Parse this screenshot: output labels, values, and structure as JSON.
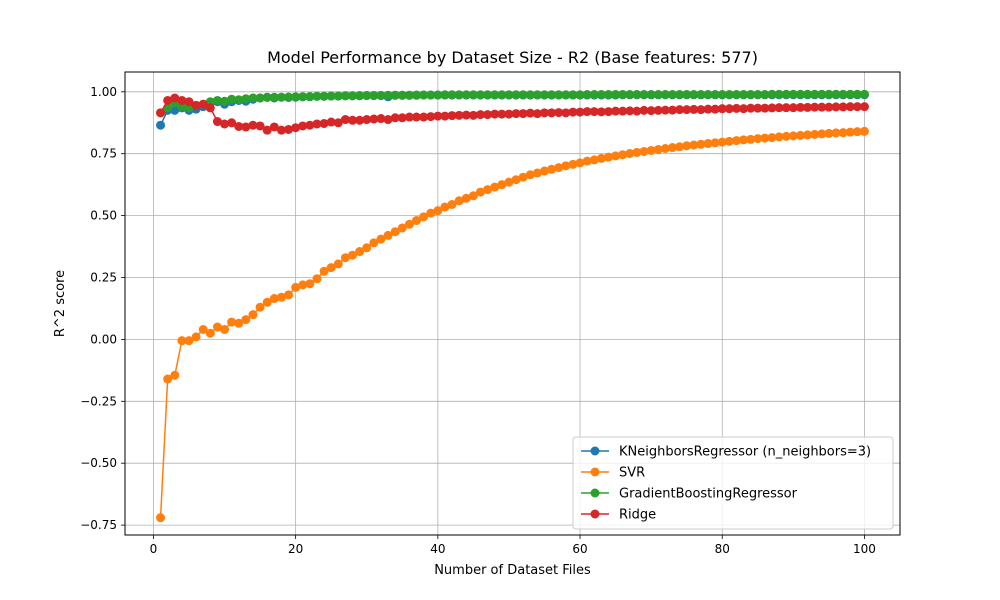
{
  "chart_data": {
    "type": "line",
    "title": "Model Performance by Dataset Size - R2 (Base features: 577)",
    "xlabel": "Number of Dataset Files",
    "ylabel": "R^2 score",
    "xlim": [
      -4,
      105
    ],
    "ylim": [
      -0.79,
      1.08
    ],
    "xticks": [
      0,
      20,
      40,
      60,
      80,
      100
    ],
    "xtick_labels": [
      "0",
      "20",
      "40",
      "60",
      "80",
      "100"
    ],
    "yticks": [
      -0.75,
      -0.5,
      -0.25,
      0.0,
      0.25,
      0.5,
      0.75,
      1.0
    ],
    "ytick_labels": [
      "−0.75",
      "−0.50",
      "−0.25",
      "0.00",
      "0.25",
      "0.50",
      "0.75",
      "1.00"
    ],
    "grid": true,
    "legend_position": "bottom-right",
    "x": [
      1,
      2,
      3,
      4,
      5,
      6,
      7,
      8,
      9,
      10,
      11,
      12,
      13,
      14,
      15,
      16,
      17,
      18,
      19,
      20,
      21,
      22,
      23,
      24,
      25,
      26,
      27,
      28,
      29,
      30,
      31,
      32,
      33,
      34,
      35,
      36,
      37,
      38,
      39,
      40,
      41,
      42,
      43,
      44,
      45,
      46,
      47,
      48,
      49,
      50,
      51,
      52,
      53,
      54,
      55,
      56,
      57,
      58,
      59,
      60,
      61,
      62,
      63,
      64,
      65,
      66,
      67,
      68,
      69,
      70,
      71,
      72,
      73,
      74,
      75,
      76,
      77,
      78,
      79,
      80,
      81,
      82,
      83,
      84,
      85,
      86,
      87,
      88,
      89,
      90,
      91,
      92,
      93,
      94,
      95,
      96,
      97,
      98,
      99,
      100
    ],
    "series": [
      {
        "name": "KNeighborsRegressor (n_neighbors=3)",
        "color": "#1f77b4",
        "values": [
          0.865,
          0.925,
          0.925,
          0.935,
          0.925,
          0.93,
          0.94,
          0.955,
          0.96,
          0.95,
          0.96,
          0.965,
          0.962,
          0.97,
          0.975,
          0.978,
          0.975,
          0.978,
          0.977,
          0.978,
          0.98,
          0.98,
          0.982,
          0.982,
          0.983,
          0.983,
          0.984,
          0.984,
          0.984,
          0.985,
          0.985,
          0.985,
          0.98,
          0.986,
          0.986,
          0.986,
          0.986,
          0.987,
          0.987,
          0.987,
          0.987,
          0.987,
          0.987,
          0.987,
          0.987,
          0.987,
          0.987,
          0.987,
          0.987,
          0.987,
          0.987,
          0.987,
          0.987,
          0.987,
          0.987,
          0.987,
          0.987,
          0.987,
          0.987,
          0.987,
          0.987,
          0.987,
          0.987,
          0.987,
          0.987,
          0.988,
          0.988,
          0.988,
          0.988,
          0.988,
          0.988,
          0.988,
          0.988,
          0.988,
          0.988,
          0.988,
          0.988,
          0.988,
          0.988,
          0.988,
          0.988,
          0.988,
          0.988,
          0.988,
          0.988,
          0.988,
          0.988,
          0.988,
          0.988,
          0.988,
          0.988,
          0.988,
          0.988,
          0.988,
          0.988,
          0.988,
          0.988,
          0.988,
          0.988,
          0.988
        ]
      },
      {
        "name": "SVR",
        "color": "#ff7f0e",
        "values": [
          -0.72,
          -0.16,
          -0.145,
          -0.005,
          -0.005,
          0.01,
          0.04,
          0.025,
          0.05,
          0.04,
          0.07,
          0.065,
          0.08,
          0.1,
          0.13,
          0.15,
          0.165,
          0.17,
          0.18,
          0.21,
          0.22,
          0.225,
          0.245,
          0.275,
          0.29,
          0.305,
          0.33,
          0.34,
          0.355,
          0.37,
          0.39,
          0.405,
          0.42,
          0.435,
          0.45,
          0.465,
          0.48,
          0.495,
          0.51,
          0.52,
          0.535,
          0.545,
          0.56,
          0.57,
          0.58,
          0.595,
          0.605,
          0.615,
          0.625,
          0.635,
          0.645,
          0.655,
          0.665,
          0.672,
          0.68,
          0.687,
          0.694,
          0.701,
          0.707,
          0.713,
          0.72,
          0.725,
          0.731,
          0.736,
          0.741,
          0.746,
          0.751,
          0.755,
          0.759,
          0.763,
          0.767,
          0.771,
          0.775,
          0.778,
          0.782,
          0.785,
          0.788,
          0.791,
          0.794,
          0.797,
          0.8,
          0.803,
          0.806,
          0.808,
          0.811,
          0.813,
          0.815,
          0.818,
          0.82,
          0.822,
          0.824,
          0.826,
          0.828,
          0.83,
          0.832,
          0.834,
          0.835,
          0.837,
          0.839,
          0.84
        ]
      },
      {
        "name": "GradientBoostingRegressor",
        "color": "#2ca02c",
        "values": [
          0.915,
          0.935,
          0.955,
          0.94,
          0.935,
          0.945,
          0.95,
          0.96,
          0.965,
          0.962,
          0.97,
          0.968,
          0.972,
          0.975,
          0.975,
          0.977,
          0.978,
          0.978,
          0.979,
          0.98,
          0.98,
          0.981,
          0.982,
          0.982,
          0.983,
          0.983,
          0.984,
          0.984,
          0.985,
          0.985,
          0.985,
          0.985,
          0.986,
          0.986,
          0.986,
          0.986,
          0.987,
          0.987,
          0.987,
          0.987,
          0.988,
          0.988,
          0.988,
          0.988,
          0.988,
          0.988,
          0.988,
          0.988,
          0.988,
          0.988,
          0.988,
          0.988,
          0.988,
          0.988,
          0.988,
          0.988,
          0.988,
          0.988,
          0.988,
          0.988,
          0.989,
          0.989,
          0.989,
          0.989,
          0.989,
          0.989,
          0.989,
          0.989,
          0.989,
          0.989,
          0.989,
          0.989,
          0.989,
          0.989,
          0.989,
          0.989,
          0.989,
          0.989,
          0.989,
          0.989,
          0.989,
          0.989,
          0.989,
          0.989,
          0.989,
          0.989,
          0.99,
          0.99,
          0.99,
          0.99,
          0.99,
          0.99,
          0.99,
          0.99,
          0.99,
          0.99,
          0.99,
          0.99,
          0.99,
          0.99
        ]
      },
      {
        "name": "Ridge",
        "color": "#d62728",
        "values": [
          0.915,
          0.965,
          0.975,
          0.965,
          0.96,
          0.945,
          0.95,
          0.935,
          0.88,
          0.87,
          0.875,
          0.86,
          0.858,
          0.865,
          0.862,
          0.845,
          0.858,
          0.845,
          0.848,
          0.855,
          0.862,
          0.865,
          0.87,
          0.872,
          0.878,
          0.875,
          0.888,
          0.885,
          0.885,
          0.888,
          0.89,
          0.892,
          0.888,
          0.895,
          0.895,
          0.898,
          0.898,
          0.898,
          0.9,
          0.902,
          0.902,
          0.904,
          0.905,
          0.906,
          0.905,
          0.908,
          0.908,
          0.91,
          0.91,
          0.91,
          0.912,
          0.912,
          0.914,
          0.912,
          0.915,
          0.915,
          0.916,
          0.915,
          0.918,
          0.918,
          0.92,
          0.92,
          0.919,
          0.92,
          0.922,
          0.922,
          0.923,
          0.922,
          0.925,
          0.924,
          0.925,
          0.926,
          0.926,
          0.928,
          0.928,
          0.929,
          0.928,
          0.93,
          0.93,
          0.932,
          0.932,
          0.933,
          0.932,
          0.934,
          0.934,
          0.934,
          0.935,
          0.936,
          0.936,
          0.936,
          0.937,
          0.937,
          0.938,
          0.938,
          0.938,
          0.939,
          0.939,
          0.94,
          0.94,
          0.94
        ]
      }
    ]
  }
}
